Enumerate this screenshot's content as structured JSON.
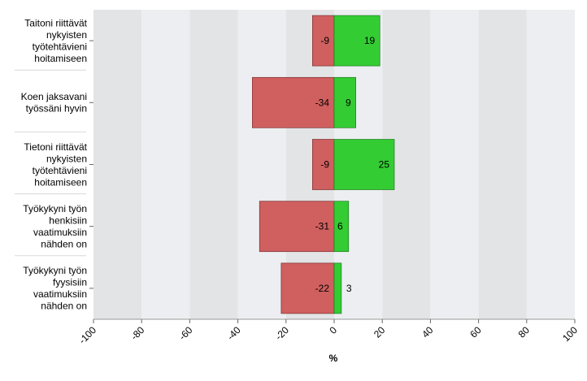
{
  "chart_data": {
    "type": "bar",
    "orientation": "horizontal",
    "stacked": "diverging",
    "title": "",
    "xlabel": "%",
    "ylabel": "",
    "xlim": [
      -100,
      100
    ],
    "x_ticks": [
      -100,
      -80,
      -60,
      -40,
      -20,
      0,
      20,
      40,
      60,
      80,
      100
    ],
    "grid": "alternating vertical bands",
    "legend": "none",
    "categories": [
      [
        "Taitoni riittävät",
        "nykyisten",
        "työtehtävieni",
        "hoitamiseen"
      ],
      [
        "Koen jaksavani",
        "työssäni hyvin"
      ],
      [
        "Tietoni riittävät",
        "nykyisten",
        "työtehtävieni",
        "hoitamiseen"
      ],
      [
        "Työkykyni työn",
        "henkisiin",
        "vaatimuksiin",
        "nähden on"
      ],
      [
        "Työkykyni työn",
        "fyysisiin",
        "vaatimuksiin",
        "nähden on"
      ]
    ],
    "series": [
      {
        "values": [
          -9,
          -34,
          -9,
          -31,
          -22
        ],
        "color": "#d05f5f"
      },
      {
        "values": [
          19,
          9,
          25,
          6,
          3
        ],
        "color": "#33cc33"
      }
    ]
  }
}
